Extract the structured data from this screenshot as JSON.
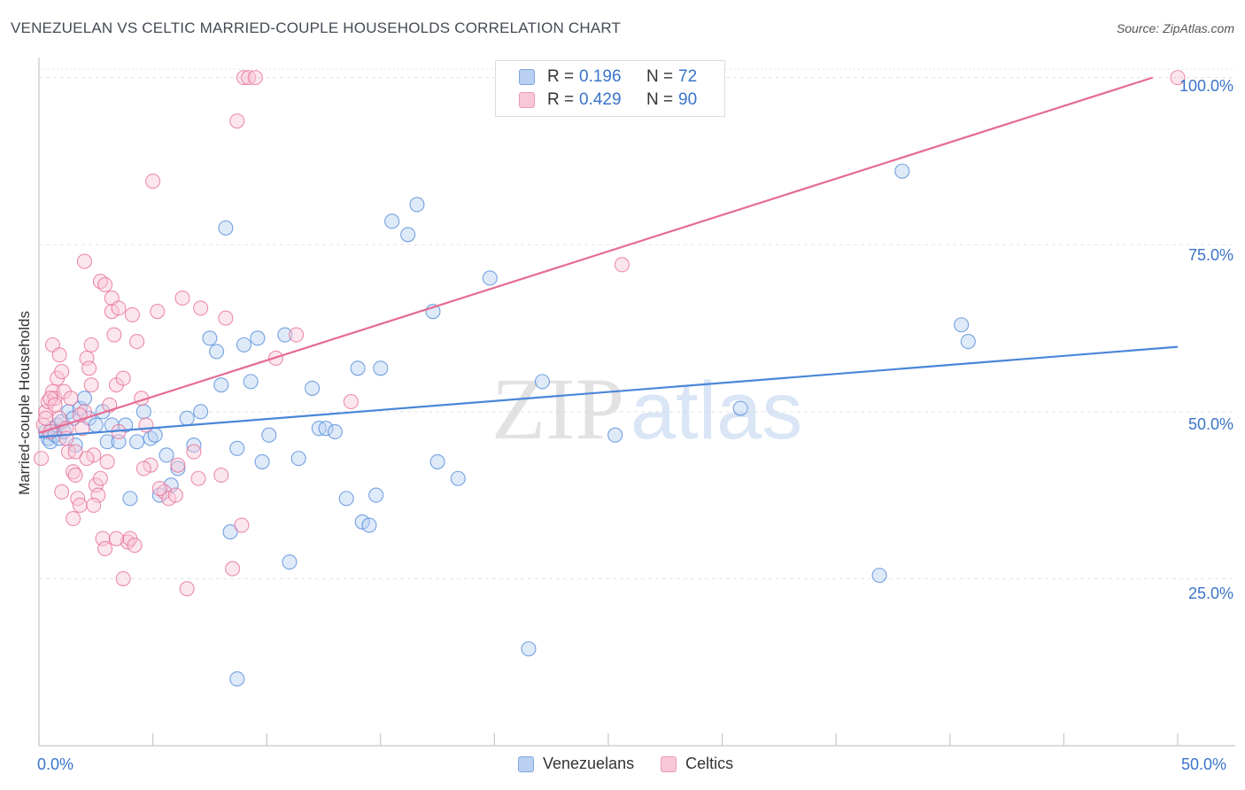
{
  "title": "VENEZUELAN VS CELTIC MARRIED-COUPLE HOUSEHOLDS CORRELATION CHART",
  "source": "Source: ZipAtlas.com",
  "watermark": {
    "zip": "ZIP",
    "atlas": "atlas"
  },
  "legend_top": {
    "r_label": "R =",
    "n_label": "N =",
    "rows": [
      {
        "r": "0.196",
        "n": "72",
        "color": "#4a86d8"
      },
      {
        "r": "0.429",
        "n": "90",
        "color": "#e66b94"
      }
    ]
  },
  "chart_data": {
    "type": "scatter",
    "title": "VENEZUELAN VS CELTIC MARRIED-COUPLE HOUSEHOLDS CORRELATION CHART",
    "xlabel": "",
    "ylabel": "Married-couple Households",
    "xlim": [
      0,
      50
    ],
    "ylim": [
      0,
      103
    ],
    "x_tick_labels": [
      "0.0%",
      "50.0%"
    ],
    "y_ticks": [
      25,
      50,
      75,
      100
    ],
    "y_tick_labels": [
      "25.0%",
      "50.0%",
      "75.0%",
      "100.0%"
    ],
    "grid": true,
    "legend_position": "bottom-center",
    "series": [
      {
        "name": "Venezuelans",
        "color": "#4a86d8",
        "fill": "#b9d0f2",
        "r": 0.196,
        "n": 72,
        "trend": {
          "x0": 0,
          "y0": 46.2,
          "x1": 50,
          "y1": 59.7
        },
        "points": [
          [
            0.3,
            47
          ],
          [
            0.4,
            46
          ],
          [
            0.5,
            45.5
          ],
          [
            0.6,
            47.5
          ],
          [
            0.7,
            46.5
          ],
          [
            0.8,
            48
          ],
          [
            0.9,
            46
          ],
          [
            1.0,
            48.5
          ],
          [
            1.1,
            47
          ],
          [
            1.3,
            50
          ],
          [
            1.5,
            49
          ],
          [
            1.6,
            45
          ],
          [
            1.8,
            50.5
          ],
          [
            2.0,
            52
          ],
          [
            2.2,
            49
          ],
          [
            2.5,
            48
          ],
          [
            2.8,
            50
          ],
          [
            3.0,
            45.5
          ],
          [
            3.2,
            48
          ],
          [
            3.5,
            45.5
          ],
          [
            3.8,
            48
          ],
          [
            4.0,
            37
          ],
          [
            4.3,
            45.5
          ],
          [
            4.6,
            50
          ],
          [
            4.9,
            46
          ],
          [
            5.1,
            46.5
          ],
          [
            5.3,
            37.5
          ],
          [
            5.6,
            43.5
          ],
          [
            5.8,
            39
          ],
          [
            6.1,
            41.5
          ],
          [
            6.5,
            49
          ],
          [
            6.8,
            45
          ],
          [
            7.1,
            50
          ],
          [
            7.5,
            61
          ],
          [
            7.8,
            59
          ],
          [
            8.0,
            54
          ],
          [
            8.2,
            77.5
          ],
          [
            8.4,
            32
          ],
          [
            8.7,
            44.5
          ],
          [
            9.0,
            60
          ],
          [
            9.3,
            54.5
          ],
          [
            9.6,
            61
          ],
          [
            9.8,
            42.5
          ],
          [
            10.1,
            46.5
          ],
          [
            10.8,
            61.5
          ],
          [
            11.0,
            27.5
          ],
          [
            11.4,
            43
          ],
          [
            12.0,
            53.5
          ],
          [
            12.3,
            47.5
          ],
          [
            12.6,
            47.5
          ],
          [
            13.0,
            47
          ],
          [
            13.5,
            37
          ],
          [
            14.0,
            56.5
          ],
          [
            14.2,
            33.5
          ],
          [
            14.5,
            33
          ],
          [
            14.8,
            37.5
          ],
          [
            15.0,
            56.5
          ],
          [
            15.5,
            78.5
          ],
          [
            16.2,
            76.5
          ],
          [
            16.6,
            81
          ],
          [
            17.3,
            65
          ],
          [
            17.5,
            42.5
          ],
          [
            18.4,
            40
          ],
          [
            19.8,
            70
          ],
          [
            21.5,
            14.5
          ],
          [
            22.1,
            54.5
          ],
          [
            25.3,
            46.5
          ],
          [
            30.8,
            50.5
          ],
          [
            36.9,
            25.5
          ],
          [
            37.9,
            86
          ],
          [
            40.5,
            63
          ],
          [
            40.8,
            60.5
          ],
          [
            8.7,
            10
          ]
        ]
      },
      {
        "name": "Celtics",
        "color": "#e66b94",
        "fill": "#f8c8d8",
        "r": 0.429,
        "n": 90,
        "trend": {
          "x0": 0,
          "y0": 46.8,
          "x1": 48.9,
          "y1": 100
        },
        "points": [
          [
            0.1,
            43
          ],
          [
            0.2,
            48
          ],
          [
            0.3,
            50
          ],
          [
            0.4,
            51.5
          ],
          [
            0.5,
            47
          ],
          [
            0.6,
            53
          ],
          [
            0.7,
            52
          ],
          [
            0.8,
            55
          ],
          [
            0.9,
            49
          ],
          [
            1.0,
            56
          ],
          [
            1.1,
            53
          ],
          [
            1.2,
            47.5
          ],
          [
            1.3,
            44
          ],
          [
            1.4,
            52
          ],
          [
            1.5,
            41
          ],
          [
            1.6,
            44
          ],
          [
            1.7,
            37
          ],
          [
            1.8,
            36
          ],
          [
            1.9,
            47.5
          ],
          [
            2.0,
            50
          ],
          [
            2.1,
            58
          ],
          [
            2.2,
            56.5
          ],
          [
            2.3,
            54
          ],
          [
            2.4,
            43.5
          ],
          [
            2.5,
            39
          ],
          [
            2.6,
            37.5
          ],
          [
            2.7,
            40
          ],
          [
            2.8,
            31
          ],
          [
            2.9,
            29.5
          ],
          [
            3.0,
            42.5
          ],
          [
            3.1,
            51
          ],
          [
            3.2,
            65
          ],
          [
            3.3,
            61.5
          ],
          [
            3.4,
            54
          ],
          [
            3.5,
            47
          ],
          [
            3.7,
            25
          ],
          [
            3.9,
            30.5
          ],
          [
            4.0,
            31
          ],
          [
            4.1,
            64.5
          ],
          [
            4.3,
            60.5
          ],
          [
            4.5,
            52
          ],
          [
            4.7,
            48
          ],
          [
            4.9,
            42
          ],
          [
            5.0,
            84.5
          ],
          [
            5.2,
            65
          ],
          [
            5.5,
            38
          ],
          [
            5.7,
            37
          ],
          [
            6.0,
            37.5
          ],
          [
            6.3,
            67
          ],
          [
            6.5,
            23.5
          ],
          [
            6.8,
            44
          ],
          [
            7.0,
            40
          ],
          [
            8.0,
            40.5
          ],
          [
            8.2,
            64
          ],
          [
            8.5,
            26.5
          ],
          [
            8.7,
            93.5
          ],
          [
            8.9,
            33
          ],
          [
            9.0,
            100
          ],
          [
            9.2,
            100
          ],
          [
            9.5,
            100
          ],
          [
            10.4,
            58
          ],
          [
            11.3,
            61.5
          ],
          [
            13.7,
            51.5
          ],
          [
            25.6,
            72
          ],
          [
            50,
            100
          ],
          [
            1.0,
            38
          ],
          [
            1.5,
            34
          ],
          [
            2.0,
            72.5
          ],
          [
            2.7,
            69.5
          ],
          [
            3.2,
            67
          ],
          [
            3.5,
            65.5
          ],
          [
            0.6,
            60
          ],
          [
            0.9,
            58.5
          ],
          [
            1.2,
            46
          ],
          [
            0.3,
            49
          ],
          [
            0.5,
            52
          ],
          [
            1.8,
            49.5
          ],
          [
            2.3,
            60
          ],
          [
            2.9,
            69
          ],
          [
            3.7,
            55
          ],
          [
            4.6,
            41.5
          ],
          [
            5.3,
            38.5
          ],
          [
            6.1,
            42
          ],
          [
            7.1,
            65.5
          ],
          [
            0.7,
            51
          ],
          [
            1.6,
            40.5
          ],
          [
            2.1,
            43
          ],
          [
            2.4,
            36
          ],
          [
            3.4,
            31
          ],
          [
            4.2,
            30
          ]
        ]
      }
    ]
  }
}
